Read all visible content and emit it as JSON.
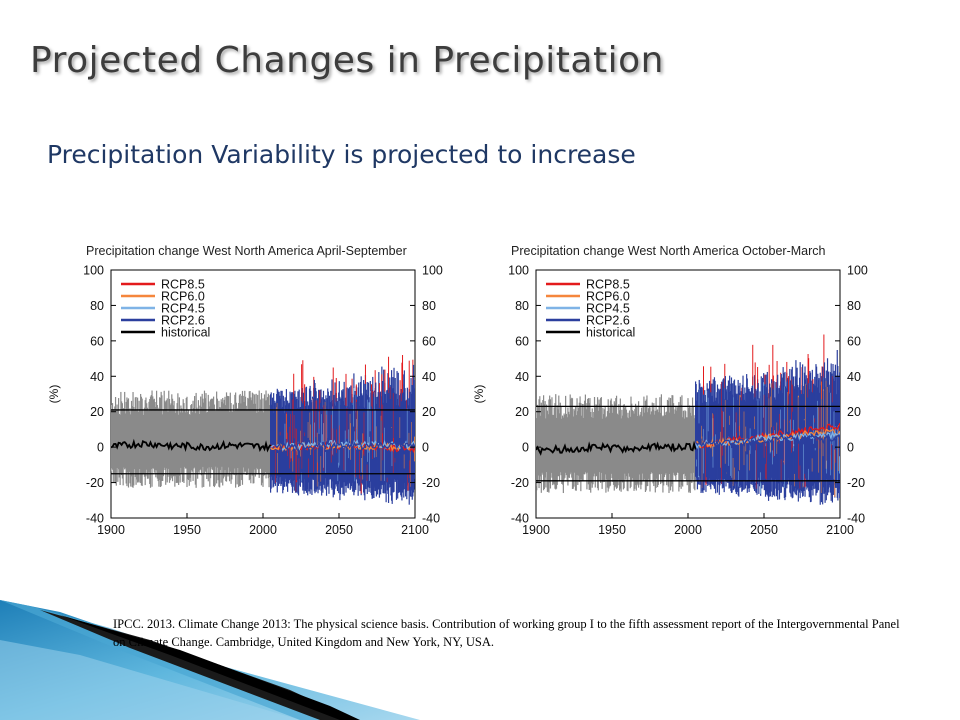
{
  "slide": {
    "title": "Projected Changes in Precipitation",
    "subtitle": "Precipitation Variability is projected to increase",
    "citation": "IPCC. 2013. Climate Change 2013: The physical science basis. Contribution of working group I to the fifth assessment report of the Intergovernmental Panel on Climate Change. Cambridge, United Kingdom and New York, NY, USA."
  },
  "colors": {
    "RCP8.5": "#e31a1c",
    "RCP6.0": "#f5863c",
    "RCP4.5": "#7fb3e6",
    "RCP2.6": "#2b3f9e",
    "historical": "#000000",
    "spread": "#8a8a8a",
    "title_text": "#3d3d3d",
    "subtitle_text": "#1f3864"
  },
  "chart_data": [
    {
      "type": "line",
      "title": "Precipitation change West North America April-September",
      "ylabel": "(%)",
      "xlim": [
        1900,
        2100
      ],
      "ylim": [
        -40,
        100
      ],
      "x_ticks": [
        1900,
        1950,
        2000,
        2050,
        2100
      ],
      "y_ticks": [
        -40,
        -20,
        0,
        20,
        40,
        60,
        80,
        100
      ],
      "legend": [
        "RCP8.5",
        "RCP6.0",
        "RCP4.5",
        "RCP2.6",
        "historical"
      ],
      "legend_position": "top-left",
      "reference_lines": [
        21,
        -15
      ],
      "historical_mean": {
        "x": [
          1900,
          1920,
          1940,
          1960,
          1980,
          2005
        ],
        "y": [
          0,
          2,
          1,
          0,
          1,
          0
        ]
      },
      "historical_spread": {
        "x_start": 1900,
        "x_end": 2005,
        "low": -15,
        "high": 22
      },
      "projection_spread": {
        "x_start": 2005,
        "x_end": 2100,
        "low": -20,
        "high": 25
      },
      "projection_means": [
        {
          "name": "RCP8.5",
          "x": [
            2005,
            2050,
            2100
          ],
          "y": [
            0,
            1,
            -1
          ]
        },
        {
          "name": "RCP6.0",
          "x": [
            2005,
            2050,
            2100
          ],
          "y": [
            0,
            1,
            0
          ]
        },
        {
          "name": "RCP4.5",
          "x": [
            2005,
            2050,
            2100
          ],
          "y": [
            0,
            2,
            1
          ]
        },
        {
          "name": "RCP2.6",
          "x": [
            2005,
            2050,
            2100
          ],
          "y": [
            0,
            1,
            1
          ]
        }
      ]
    },
    {
      "type": "line",
      "title": "Precipitation change West North America October-March",
      "ylabel": "(%)",
      "xlim": [
        1900,
        2100
      ],
      "ylim": [
        -40,
        100
      ],
      "x_ticks": [
        1900,
        1950,
        2000,
        2050,
        2100
      ],
      "y_ticks": [
        -40,
        -20,
        0,
        20,
        40,
        60,
        80,
        100
      ],
      "legend": [
        "RCP8.5",
        "RCP6.0",
        "RCP4.5",
        "RCP2.6",
        "historical"
      ],
      "legend_position": "top-left",
      "reference_lines": [
        23,
        -19
      ],
      "historical_mean": {
        "x": [
          1900,
          1920,
          1940,
          1960,
          1980,
          2005
        ],
        "y": [
          -2,
          -1,
          0,
          -1,
          0,
          0
        ]
      },
      "historical_spread": {
        "x_start": 1900,
        "x_end": 2005,
        "low": -18,
        "high": 20
      },
      "projection_spread": {
        "x_start": 2005,
        "x_end": 2100,
        "low": -20,
        "high": 30
      },
      "projection_means": [
        {
          "name": "RCP8.5",
          "x": [
            2005,
            2050,
            2100
          ],
          "y": [
            1,
            6,
            12
          ]
        },
        {
          "name": "RCP6.0",
          "x": [
            2005,
            2050,
            2100
          ],
          "y": [
            1,
            5,
            9
          ]
        },
        {
          "name": "RCP4.5",
          "x": [
            2005,
            2050,
            2100
          ],
          "y": [
            1,
            5,
            7
          ]
        },
        {
          "name": "RCP2.6",
          "x": [
            2005,
            2050,
            2100
          ],
          "y": [
            1,
            4,
            5
          ]
        }
      ]
    }
  ]
}
